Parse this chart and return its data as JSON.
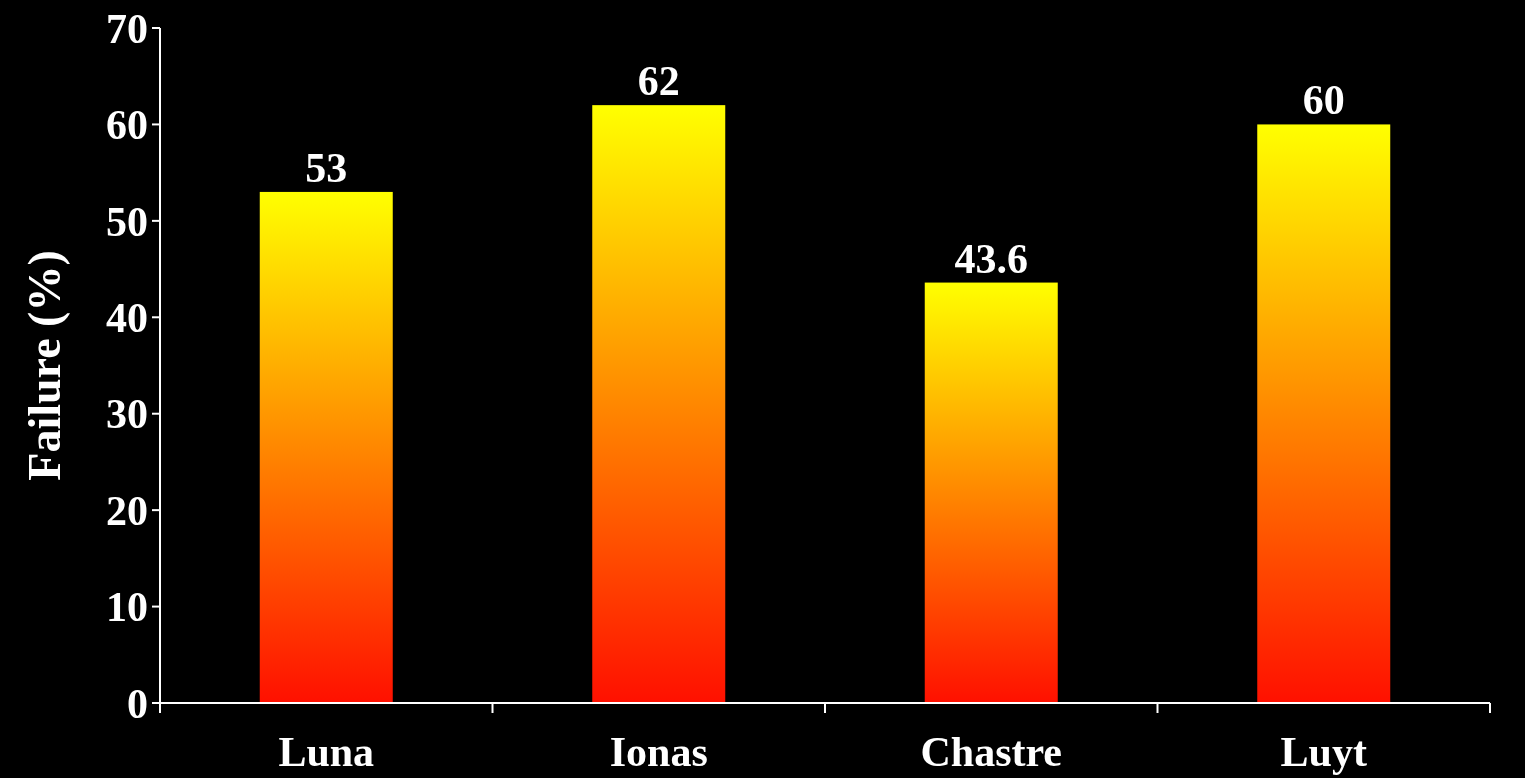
{
  "chart_data": {
    "type": "bar",
    "ylabel": "Failure (%)",
    "categories": [
      "Luna",
      "Ionas",
      "Chastre",
      "Luyt"
    ],
    "values": [
      53,
      62,
      43.6,
      60
    ],
    "color": "#ffff00",
    "ylim": [
      0,
      70
    ],
    "yticks": [
      0,
      10,
      20,
      30,
      40,
      50,
      60,
      70
    ],
    "data_labels": true
  }
}
